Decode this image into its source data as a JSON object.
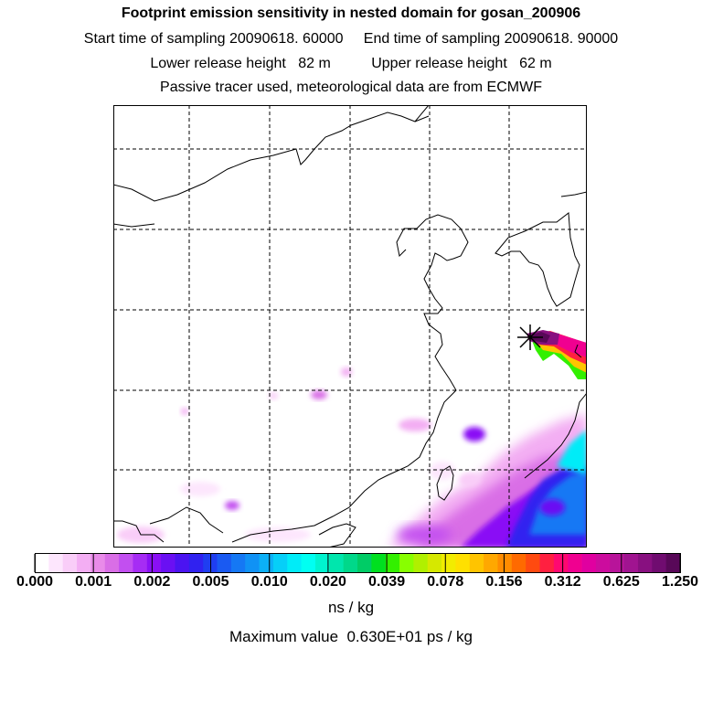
{
  "header": {
    "title": "Footprint emission sensitivity in nested domain for gosan_200906",
    "sampling": "Start time of sampling 20090618. 60000     End time of sampling 20090618. 90000",
    "release": "Lower release height   82 m          Upper release height   62 m",
    "tracer": "Passive tracer used, meteorological data are from ECMWF"
  },
  "colorbar": {
    "ticks": [
      "0.000",
      "0.001",
      "0.002",
      "0.005",
      "0.010",
      "0.020",
      "0.039",
      "0.078",
      "0.156",
      "0.312",
      "0.625",
      "1.250"
    ],
    "units": "ns / kg",
    "colors": [
      "#ffffff",
      "#fde6fd",
      "#f9cdf8",
      "#f3aef3",
      "#e98be9",
      "#d96ee6",
      "#c24ff0",
      "#a62cf4",
      "#8a10f5",
      "#6a10f3",
      "#4b14f1",
      "#3022f0",
      "#1f3ef1",
      "#1a5af2",
      "#1578f4",
      "#1092f5",
      "#0cb0f6",
      "#06cff8",
      "#00ecf8",
      "#00fff2",
      "#00f3cf",
      "#00e6ad",
      "#00d88a",
      "#00cc66",
      "#00e020",
      "#33f000",
      "#88ff00",
      "#b0f000",
      "#d6e800",
      "#f2ec00",
      "#ffe000",
      "#ffc400",
      "#ffa800",
      "#ff8c00",
      "#ff6a00",
      "#ff4a10",
      "#ff2040",
      "#ff0870",
      "#f00090",
      "#e000a0",
      "#cc0c9e",
      "#b8149a",
      "#a01490",
      "#881080",
      "#700c70",
      "#580858"
    ]
  },
  "max_value": "Maximum value  0.630E+01 ps / kg"
}
